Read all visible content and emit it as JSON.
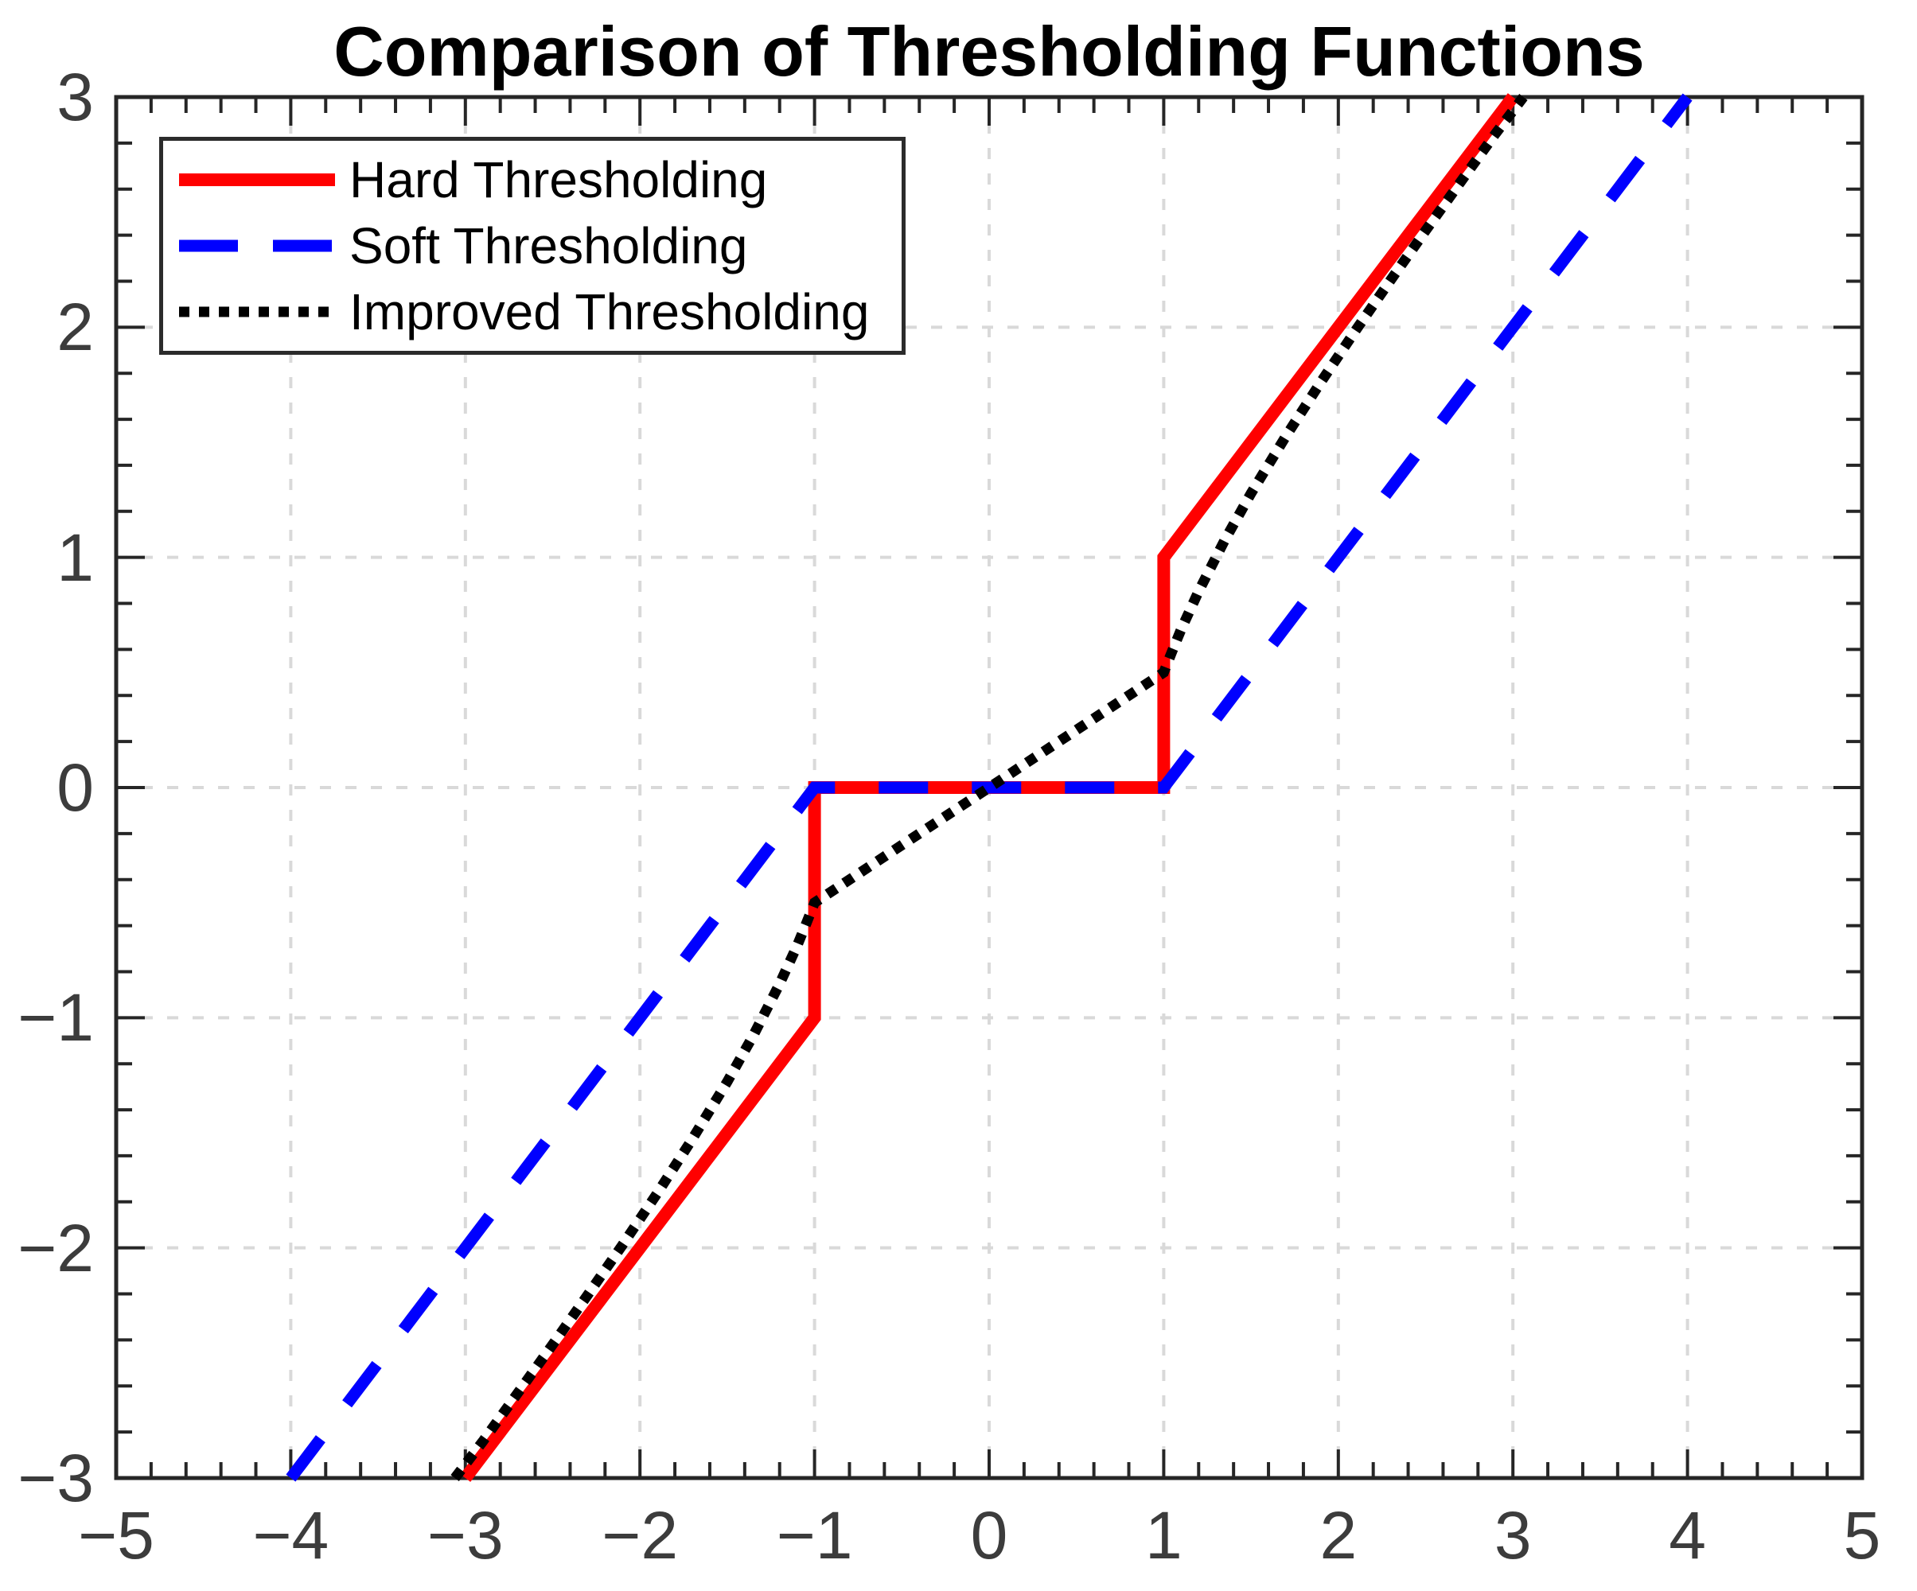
{
  "colors": {
    "hard": "#FF0000",
    "soft": "#0000FF",
    "improved": "#000000",
    "grid": "#D9D9D9",
    "axis": "#262626",
    "tick_label": "#3C3C3C",
    "title": "#000000",
    "background": "#FFFFFF"
  },
  "chart_data": {
    "type": "line",
    "title": "Comparison of Thresholding Functions",
    "xlabel": "",
    "ylabel": "",
    "xlim": [
      -5,
      5
    ],
    "ylim": [
      -3,
      3
    ],
    "grid": true,
    "grid_style": "dashed",
    "minor_tick_step": 0.2,
    "legend_position": "top-left",
    "x_ticks": {
      "values": [
        -5,
        -4,
        -3,
        -2,
        -1,
        0,
        1,
        2,
        3,
        4,
        5
      ],
      "labels": [
        "−5",
        "−4",
        "−3",
        "−2",
        "−1",
        "0",
        "1",
        "2",
        "3",
        "4",
        "5"
      ]
    },
    "y_ticks": {
      "values": [
        -3,
        -2,
        -1,
        0,
        1,
        2,
        3
      ],
      "labels": [
        "−3",
        "−2",
        "−1",
        "0",
        "1",
        "2",
        "3"
      ]
    },
    "series": [
      {
        "id": "hard",
        "name": "Hard Thresholding",
        "color": "#FF0000",
        "style": "solid",
        "points": [
          [
            -3,
            -3
          ],
          [
            -1,
            -1
          ],
          [
            -1,
            0
          ],
          [
            1,
            0
          ],
          [
            1,
            1
          ],
          [
            3,
            3
          ]
        ]
      },
      {
        "id": "soft",
        "name": "Soft Thresholding",
        "color": "#0000FF",
        "style": "dashed",
        "points": [
          [
            -4,
            -3
          ],
          [
            -1,
            0
          ],
          [
            1,
            0
          ],
          [
            4,
            3
          ]
        ]
      },
      {
        "id": "improved",
        "name": "Improved Thresholding",
        "color": "#000000",
        "style": "dotted",
        "points": [
          [
            -3.06,
            -3
          ],
          [
            -2.9,
            -2.841
          ],
          [
            -2.7,
            -2.631
          ],
          [
            -2.5,
            -2.42
          ],
          [
            -2.3,
            -2.205
          ],
          [
            -2.1,
            -1.987
          ],
          [
            -1.9,
            -1.762
          ],
          [
            -1.7,
            -1.527
          ],
          [
            -1.5,
            -1.278
          ],
          [
            -1.35,
            -1.076
          ],
          [
            -1.2,
            -0.853
          ],
          [
            -1.1,
            -0.687
          ],
          [
            -1.05,
            -0.596
          ],
          [
            -1,
            -0.5
          ],
          [
            0,
            0
          ],
          [
            1,
            0.5
          ],
          [
            1.05,
            0.596
          ],
          [
            1.1,
            0.687
          ],
          [
            1.2,
            0.853
          ],
          [
            1.35,
            1.076
          ],
          [
            1.5,
            1.278
          ],
          [
            1.7,
            1.527
          ],
          [
            1.9,
            1.762
          ],
          [
            2.1,
            1.987
          ],
          [
            2.3,
            2.205
          ],
          [
            2.5,
            2.42
          ],
          [
            2.7,
            2.631
          ],
          [
            2.9,
            2.841
          ],
          [
            3.06,
            3
          ]
        ]
      }
    ]
  }
}
